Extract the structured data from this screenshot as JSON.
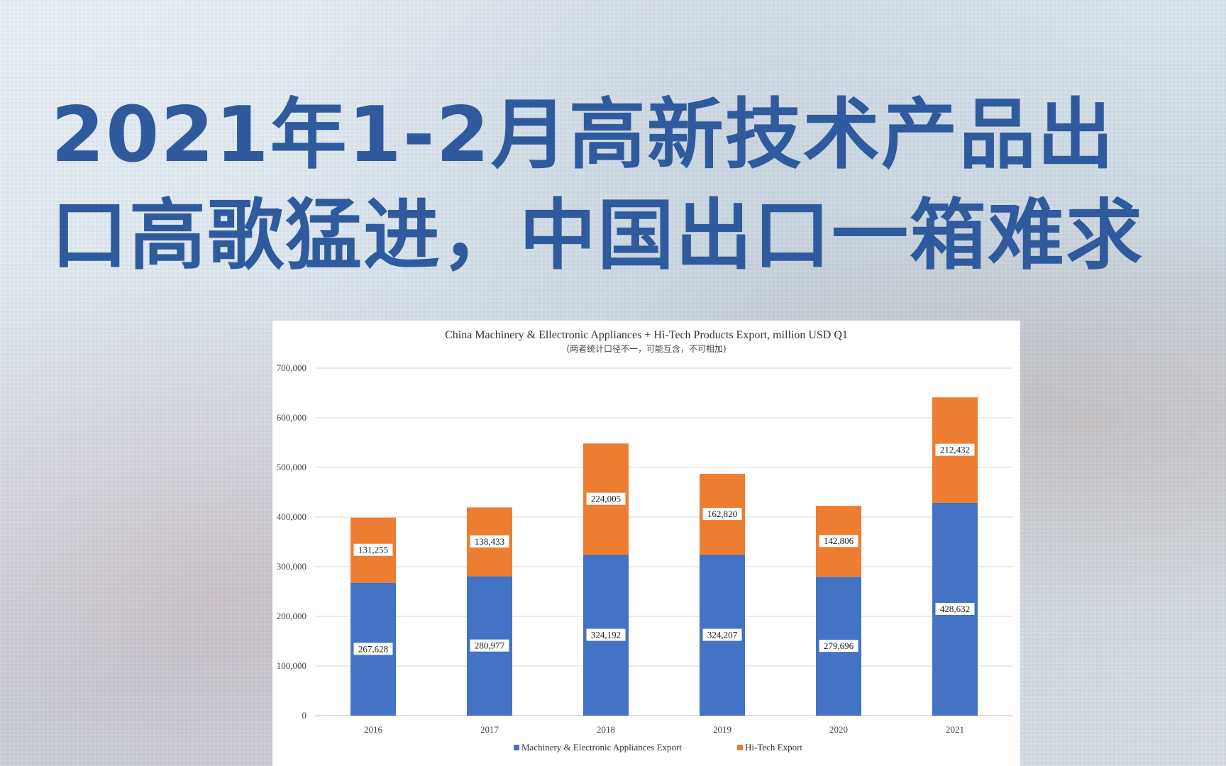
{
  "headline": "2021年1-2月高新技术产品出口高歌猛进，中国出口一箱难求",
  "chart_data": {
    "type": "bar",
    "stacked": true,
    "title": "China Machinery & Ellectronic Appliances + Hi-Tech Products Export, million USD Q1",
    "subtitle": "(两者统计口径不一，可能互含，不可相加)",
    "categories": [
      "2016",
      "2017",
      "2018",
      "2019",
      "2020",
      "2021"
    ],
    "series": [
      {
        "name": "Machinery & Electronic Appliances Export",
        "color": "#4472c4",
        "values": [
          267628,
          280977,
          324192,
          324207,
          279696,
          428632
        ]
      },
      {
        "name": "Hi-Tech Export",
        "color": "#ed7d31",
        "values": [
          131255,
          138433,
          224005,
          162820,
          142806,
          212432
        ]
      }
    ],
    "data_labels": {
      "Machinery & Electronic Appliances Export": [
        "267,628",
        "280,977",
        "324,192",
        "324,207",
        "279,696",
        "428,632"
      ],
      "Hi-Tech Export": [
        "131,255",
        "138,433",
        "224,005",
        "162,820",
        "142,806",
        "212,432"
      ]
    },
    "yticks": [
      "0",
      "100,000",
      "200,000",
      "300,000",
      "400,000",
      "500,000",
      "600,000",
      "700,000"
    ],
    "ylim": [
      0,
      700000
    ],
    "grid": true,
    "legend_position": "bottom"
  }
}
